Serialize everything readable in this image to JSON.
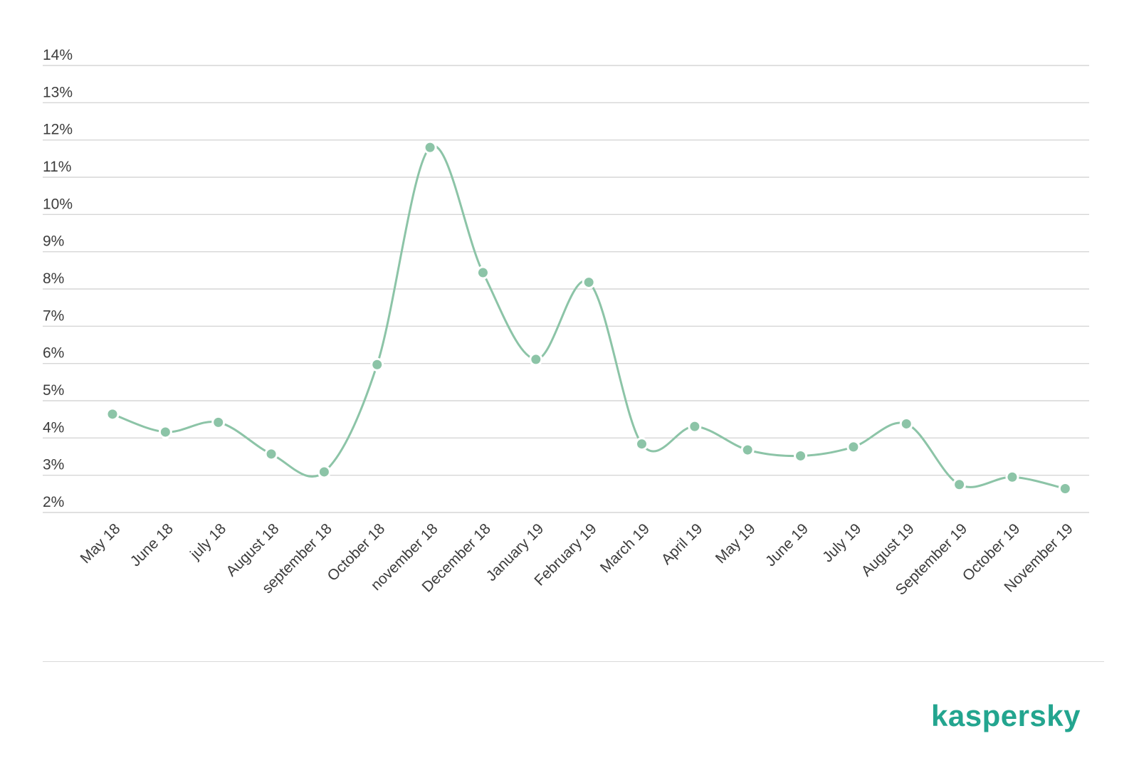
{
  "colors": {
    "line": "#8cc4a7",
    "brand": "#23a58f"
  },
  "chart_data": {
    "type": "line",
    "categories": [
      "May 18",
      "June 18",
      "july 18",
      "August 18",
      "september 18",
      "October 18",
      "november 18",
      "December 18",
      "January 19",
      "February 19",
      "March 19",
      "April 19",
      "May 19",
      "June 19",
      "July 19",
      "August 19",
      "September 19",
      "October 19",
      "November 19"
    ],
    "series": [
      {
        "values": [
          4.64,
          4.16,
          4.42,
          3.57,
          3.09,
          5.97,
          11.8,
          8.44,
          6.11,
          8.18,
          3.84,
          4.31,
          3.68,
          3.52,
          3.76,
          4.38,
          2.75,
          2.95,
          2.64
        ]
      }
    ],
    "ylim": [
      2,
      14
    ],
    "yticks": [
      "2%",
      "3%",
      "4%",
      "5%",
      "6%",
      "7%",
      "8%",
      "9%",
      "10%",
      "11%",
      "12%",
      "13%",
      "14%"
    ],
    "grid": true,
    "smooth": true
  },
  "brand": {
    "logo_text": "kaspersky"
  }
}
